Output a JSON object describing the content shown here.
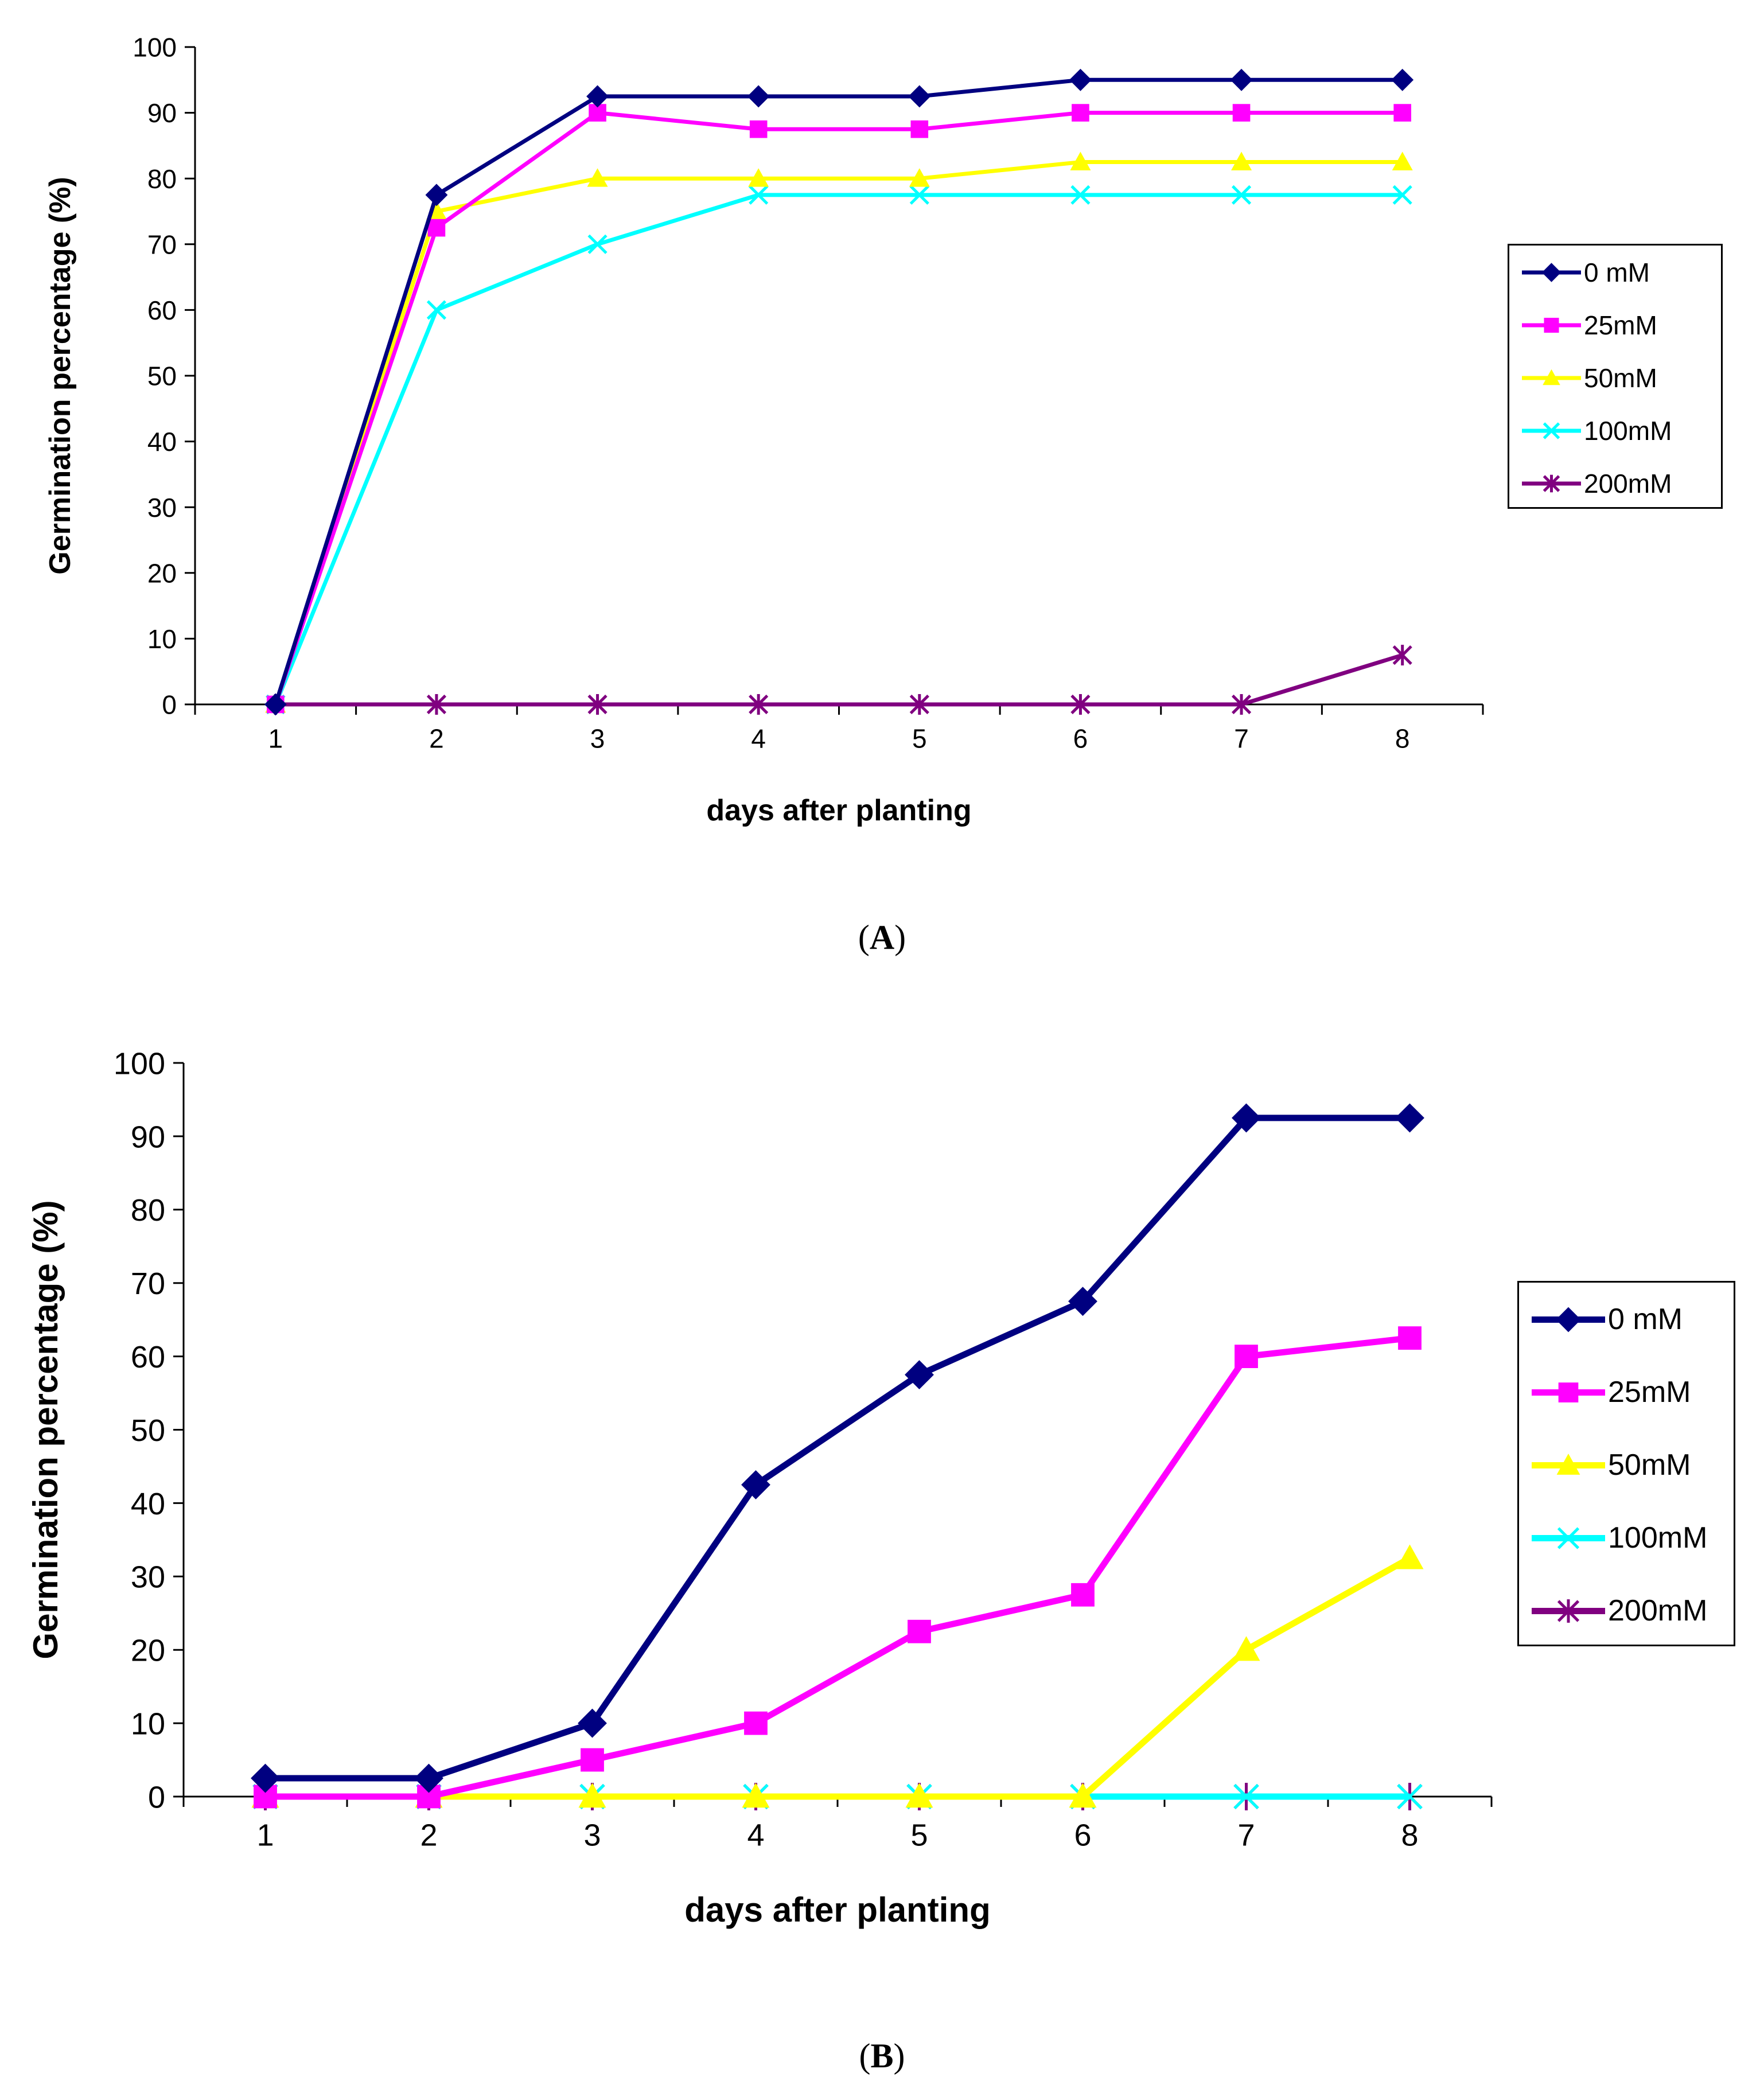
{
  "charts": [
    {
      "panel_label": "A",
      "chart_data": {
        "type": "line",
        "x": [
          1,
          2,
          3,
          4,
          5,
          6,
          7,
          8
        ],
        "xlabel": "days after planting",
        "ylabel": "Germination percentage (%)",
        "ylim": [
          0,
          100
        ],
        "yticks": [
          0,
          10,
          20,
          30,
          40,
          50,
          60,
          70,
          80,
          90,
          100
        ],
        "xticks": [
          1,
          2,
          3,
          4,
          5,
          6,
          7,
          8
        ],
        "grid": false,
        "legend_position": "right",
        "series": [
          {
            "name": "0 mM",
            "color": "#000080",
            "marker": "diamond",
            "values": [
              0,
              77.5,
              92.5,
              92.5,
              92.5,
              95,
              95,
              95
            ]
          },
          {
            "name": "25mM",
            "color": "#FF00FF",
            "marker": "square",
            "values": [
              0,
              72.5,
              90,
              87.5,
              87.5,
              90,
              90,
              90
            ]
          },
          {
            "name": "50mM",
            "color": "#FFFF00",
            "marker": "triangle",
            "values": [
              0,
              75,
              80,
              80,
              80,
              82.5,
              82.5,
              82.5
            ]
          },
          {
            "name": "100mM",
            "color": "#00FFFF",
            "marker": "x",
            "values": [
              0,
              60,
              70,
              77.5,
              77.5,
              77.5,
              77.5,
              77.5
            ]
          },
          {
            "name": "200mM",
            "color": "#800080",
            "marker": "star",
            "values": [
              0,
              0,
              0,
              0,
              0,
              0,
              0,
              7.5
            ]
          }
        ]
      }
    },
    {
      "panel_label": "B",
      "chart_data": {
        "type": "line",
        "x": [
          1,
          2,
          3,
          4,
          5,
          6,
          7,
          8
        ],
        "xlabel": "days after planting",
        "ylabel": "Germination percentage (%)",
        "ylim": [
          0,
          100
        ],
        "yticks": [
          0,
          10,
          20,
          30,
          40,
          50,
          60,
          70,
          80,
          90,
          100
        ],
        "xticks": [
          1,
          2,
          3,
          4,
          5,
          6,
          7,
          8
        ],
        "grid": false,
        "legend_position": "right",
        "series": [
          {
            "name": "0 mM",
            "color": "#000080",
            "marker": "diamond",
            "values": [
              2.5,
              2.5,
              10,
              42.5,
              57.5,
              67.5,
              92.5,
              92.5
            ]
          },
          {
            "name": "25mM",
            "color": "#FF00FF",
            "marker": "square",
            "values": [
              0,
              0,
              5,
              10,
              22.5,
              27.5,
              60,
              62.5
            ]
          },
          {
            "name": "50mM",
            "color": "#FFFF00",
            "marker": "triangle",
            "values": [
              0,
              0,
              0,
              0,
              0,
              0,
              20,
              32.5
            ]
          },
          {
            "name": "100mM",
            "color": "#00FFFF",
            "marker": "x",
            "values": [
              0,
              0,
              0,
              0,
              0,
              0,
              0,
              0
            ]
          },
          {
            "name": "200mM",
            "color": "#800080",
            "marker": "star",
            "values": [
              0,
              0,
              0,
              0,
              0,
              0,
              0,
              0
            ]
          }
        ]
      }
    }
  ]
}
